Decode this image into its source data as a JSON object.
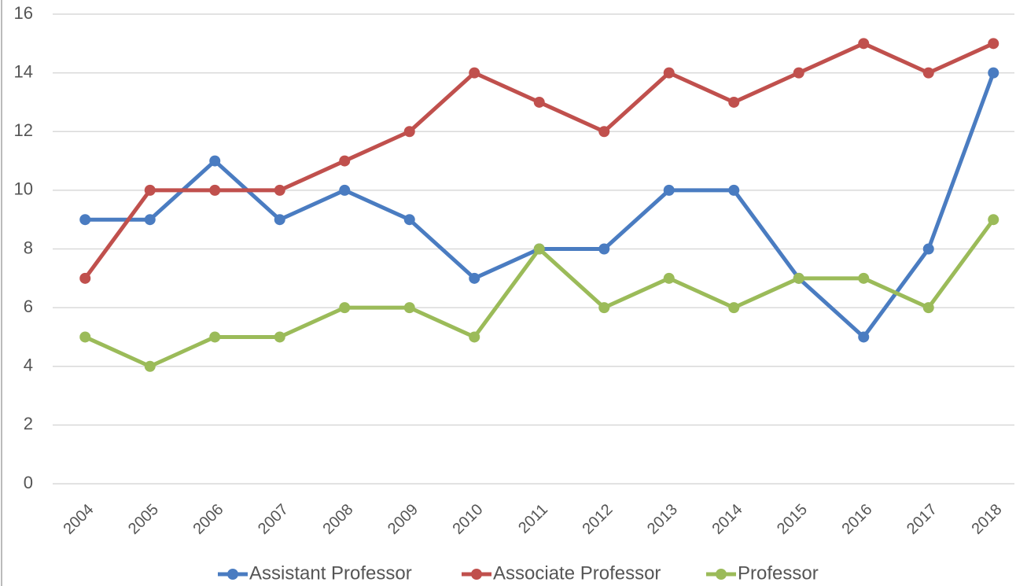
{
  "chart_data": {
    "type": "line",
    "categories": [
      "2004",
      "2005",
      "2006",
      "2007",
      "2008",
      "2009",
      "2010",
      "2011",
      "2012",
      "2013",
      "2014",
      "2015",
      "2016",
      "2017",
      "2018"
    ],
    "series": [
      {
        "name": "Assistant Professor",
        "color": "#4a7cc1",
        "values": [
          9,
          9,
          11,
          9,
          10,
          9,
          7,
          8,
          8,
          10,
          10,
          7,
          5,
          8,
          14
        ]
      },
      {
        "name": "Associate Professor",
        "color": "#c0504d",
        "values": [
          7,
          10,
          10,
          10,
          11,
          12,
          14,
          13,
          12,
          14,
          13,
          14,
          15,
          14,
          15
        ]
      },
      {
        "name": "Professor",
        "color": "#9bbb59",
        "values": [
          5,
          4,
          5,
          5,
          6,
          6,
          5,
          8,
          6,
          7,
          6,
          7,
          7,
          6,
          9
        ]
      }
    ],
    "ylim": [
      0,
      16
    ],
    "yticks": [
      0,
      2,
      4,
      6,
      8,
      10,
      12,
      14,
      16
    ],
    "grid": true,
    "legend": "bottom"
  }
}
